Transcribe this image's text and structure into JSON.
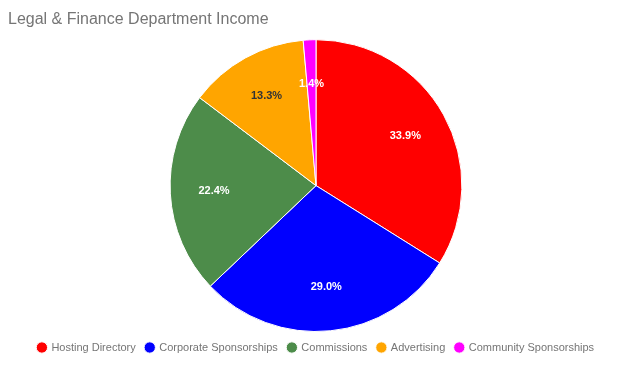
{
  "chart_data": {
    "type": "pie",
    "title": "Legal & Finance Department Income",
    "categories": [
      "Hosting Directory",
      "Corporate Sponsorships",
      "Commissions",
      "Advertising",
      "Community Sponsorships"
    ],
    "values": [
      33.9,
      29.0,
      22.4,
      13.3,
      1.4
    ],
    "value_labels": [
      "33.9%",
      "29.0%",
      "22.4%",
      "13.3%",
      "1.4%"
    ],
    "colors": [
      "#ff0000",
      "#0000ff",
      "#4d8c4a",
      "#ffa500",
      "#ff00ff"
    ],
    "data_labels": true,
    "legend": "bottom"
  }
}
